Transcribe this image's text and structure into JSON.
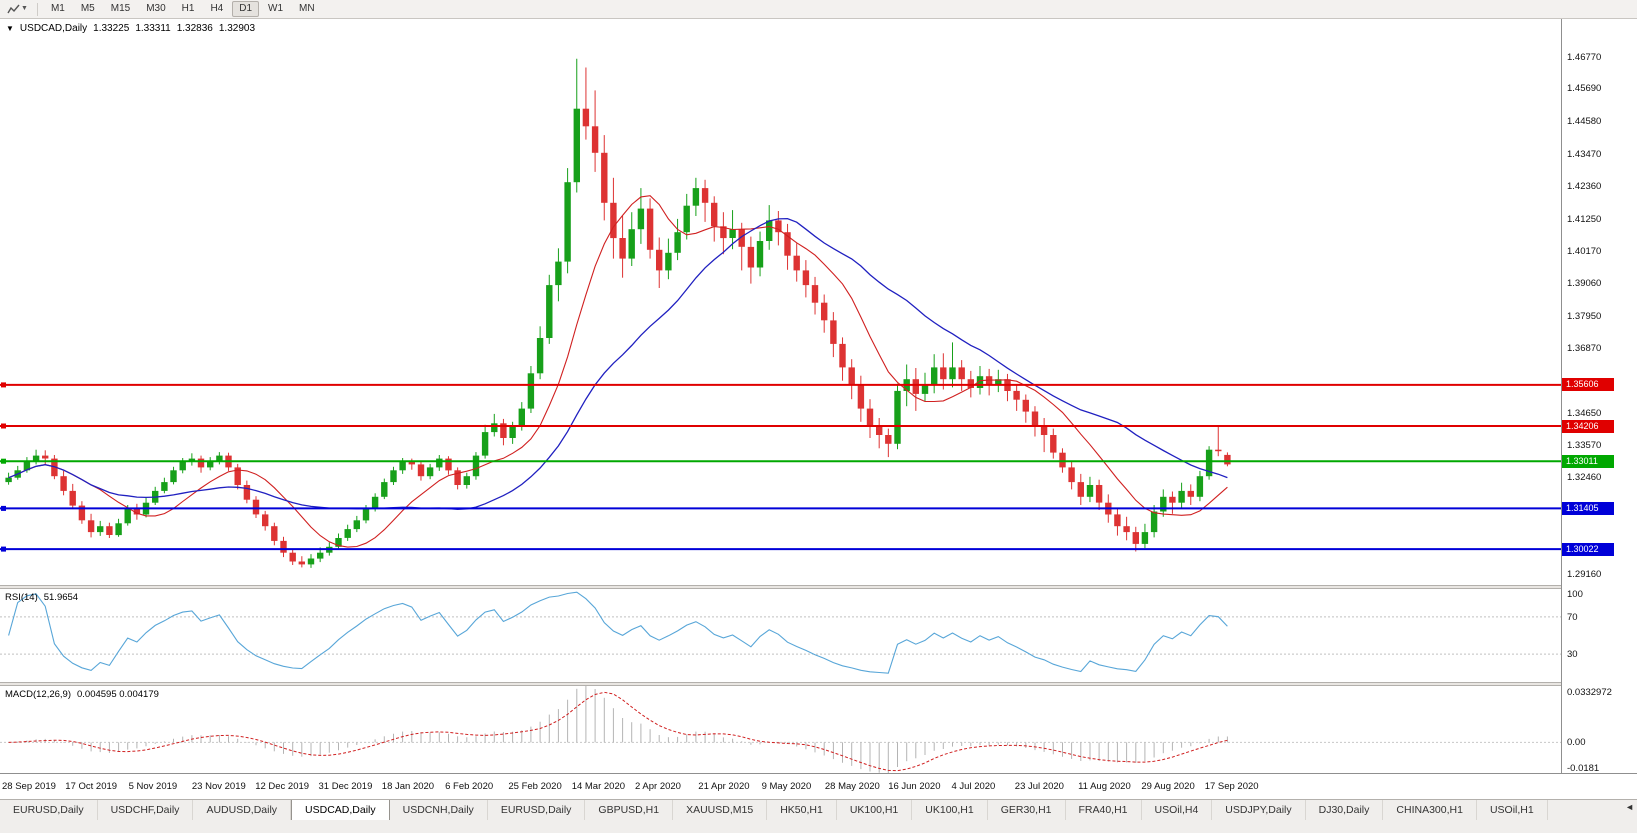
{
  "toolbar": {
    "timeframes": [
      "M1",
      "M5",
      "M15",
      "M30",
      "H1",
      "H4",
      "D1",
      "W1",
      "MN"
    ],
    "active_timeframe": "D1"
  },
  "chart_header": {
    "symbol_period": "USDCAD,Daily",
    "open": "1.33225",
    "high": "1.33311",
    "low": "1.32836",
    "close": "1.32903"
  },
  "chart_data": {
    "type": "candlestick",
    "title": "USDCAD,Daily",
    "up_color": "#17a01a",
    "down_color": "#dd3333",
    "ma_fast_color": "#d02020",
    "ma_slow_color": "#2020c0",
    "y_range": [
      1.288,
      1.4805
    ],
    "y_ticks": [
      "1.46770",
      "1.45690",
      "1.44580",
      "1.43470",
      "1.42360",
      "1.41250",
      "1.40170",
      "1.39060",
      "1.37950",
      "1.36870",
      "1.34650",
      "1.33570",
      "1.32460",
      "1.29160"
    ],
    "x_labels": [
      "28 Sep 2019",
      "17 Oct 2019",
      "5 Nov 2019",
      "23 Nov 2019",
      "12 Dec 2019",
      "31 Dec 2019",
      "18 Jan 2020",
      "6 Feb 2020",
      "25 Feb 2020",
      "14 Mar 2020",
      "2 Apr 2020",
      "21 Apr 2020",
      "9 May 2020",
      "28 May 2020",
      "16 Jun 2020",
      "4 Jul 2020",
      "23 Jul 2020",
      "11 Aug 2020",
      "29 Aug 2020",
      "17 Sep 2020"
    ],
    "hlines": [
      {
        "price": 1.35606,
        "label": "1.35606",
        "color": "#e00000",
        "width": 2
      },
      {
        "price": 1.34206,
        "label": "1.34206",
        "color": "#e00000",
        "width": 2
      },
      {
        "price": 1.33011,
        "label": "1.33011",
        "color": "#00a800",
        "width": 2
      },
      {
        "price": 1.31405,
        "label": "1.31405",
        "color": "#0000d8",
        "width": 2
      },
      {
        "price": 1.30022,
        "label": "1.30022",
        "color": "#0000d8",
        "width": 2
      }
    ],
    "indicators": [
      {
        "name": "RSI",
        "label": "RSI(14)",
        "values": "51.9654",
        "color": "#58a6d8",
        "levels": [
          "100",
          "70",
          "30"
        ],
        "level_values": [
          100,
          70,
          30
        ]
      },
      {
        "name": "MACD",
        "label": "MACD(12,26,9)",
        "values": "0.004595 0.004179",
        "histogram_color": "#b4b4b4",
        "signal_color": "#d02020",
        "axis_labels": [
          "0.0332972",
          "0.00",
          "-0.0181"
        ]
      }
    ],
    "candles": [
      [
        1.323,
        1.3262,
        1.3221,
        1.3245
      ],
      [
        1.3245,
        1.3285,
        1.3238,
        1.327
      ],
      [
        1.327,
        1.3315,
        1.3262,
        1.33
      ],
      [
        1.33,
        1.334,
        1.329,
        1.332
      ],
      [
        1.332,
        1.3338,
        1.3288,
        1.331
      ],
      [
        1.331,
        1.3322,
        1.324,
        1.325
      ],
      [
        1.325,
        1.3268,
        1.3185,
        1.32
      ],
      [
        1.32,
        1.3224,
        1.3138,
        1.315
      ],
      [
        1.315,
        1.3165,
        1.3088,
        1.31
      ],
      [
        1.31,
        1.3122,
        1.3042,
        1.306
      ],
      [
        1.306,
        1.3098,
        1.3047,
        1.308
      ],
      [
        1.308,
        1.3092,
        1.304,
        1.305
      ],
      [
        1.305,
        1.3105,
        1.3044,
        1.309
      ],
      [
        1.309,
        1.3152,
        1.3082,
        1.314
      ],
      [
        1.314,
        1.3156,
        1.3102,
        1.312
      ],
      [
        1.312,
        1.3176,
        1.311,
        1.316
      ],
      [
        1.316,
        1.3214,
        1.3152,
        1.32
      ],
      [
        1.32,
        1.3245,
        1.3192,
        1.323
      ],
      [
        1.323,
        1.3282,
        1.3222,
        1.327
      ],
      [
        1.327,
        1.3312,
        1.326,
        1.33
      ],
      [
        1.33,
        1.3328,
        1.3286,
        1.331
      ],
      [
        1.331,
        1.332,
        1.3262,
        1.328
      ],
      [
        1.328,
        1.3315,
        1.327,
        1.33
      ],
      [
        1.33,
        1.3332,
        1.329,
        1.332
      ],
      [
        1.332,
        1.333,
        1.3268,
        1.328
      ],
      [
        1.328,
        1.3292,
        1.3205,
        1.322
      ],
      [
        1.322,
        1.3235,
        1.3158,
        1.317
      ],
      [
        1.317,
        1.3182,
        1.3108,
        1.312
      ],
      [
        1.312,
        1.3132,
        1.3065,
        1.308
      ],
      [
        1.308,
        1.3092,
        1.3015,
        1.303
      ],
      [
        1.303,
        1.3044,
        1.2975,
        1.299
      ],
      [
        1.299,
        1.3002,
        1.2948,
        1.296
      ],
      [
        1.296,
        1.2978,
        1.294,
        1.295
      ],
      [
        1.295,
        1.2985,
        1.2938,
        1.297
      ],
      [
        1.297,
        1.3008,
        1.2958,
        1.299
      ],
      [
        1.299,
        1.3025,
        1.298,
        1.301
      ],
      [
        1.301,
        1.3055,
        1.3,
        1.304
      ],
      [
        1.304,
        1.3085,
        1.303,
        1.307
      ],
      [
        1.307,
        1.3115,
        1.306,
        1.31
      ],
      [
        1.31,
        1.3152,
        1.309,
        1.314
      ],
      [
        1.314,
        1.3192,
        1.313,
        1.318
      ],
      [
        1.318,
        1.3242,
        1.3172,
        1.323
      ],
      [
        1.323,
        1.3282,
        1.322,
        1.327
      ],
      [
        1.327,
        1.3312,
        1.3258,
        1.33
      ],
      [
        1.33,
        1.331,
        1.3272,
        1.329
      ],
      [
        1.329,
        1.3302,
        1.3235,
        1.325
      ],
      [
        1.325,
        1.3292,
        1.324,
        1.328
      ],
      [
        1.328,
        1.3322,
        1.3268,
        1.331
      ],
      [
        1.331,
        1.3318,
        1.3255,
        1.327
      ],
      [
        1.327,
        1.328,
        1.3205,
        1.322
      ],
      [
        1.322,
        1.3262,
        1.3208,
        1.325
      ],
      [
        1.325,
        1.3332,
        1.3238,
        1.332
      ],
      [
        1.332,
        1.3425,
        1.331,
        1.34
      ],
      [
        1.34,
        1.3462,
        1.3385,
        1.343
      ],
      [
        1.343,
        1.3445,
        1.3355,
        1.338
      ],
      [
        1.338,
        1.3435,
        1.336,
        1.342
      ],
      [
        1.342,
        1.3502,
        1.3405,
        1.348
      ],
      [
        1.348,
        1.3625,
        1.3465,
        1.36
      ],
      [
        1.36,
        1.376,
        1.358,
        1.372
      ],
      [
        1.372,
        1.3935,
        1.37,
        1.39
      ],
      [
        1.39,
        1.4025,
        1.3845,
        1.398
      ],
      [
        1.398,
        1.4298,
        1.394,
        1.425
      ],
      [
        1.425,
        1.467,
        1.4215,
        1.45
      ],
      [
        1.45,
        1.464,
        1.4395,
        1.444
      ],
      [
        1.444,
        1.4562,
        1.4285,
        1.435
      ],
      [
        1.435,
        1.441,
        1.412,
        1.418
      ],
      [
        1.418,
        1.4265,
        1.399,
        1.406
      ],
      [
        1.406,
        1.4135,
        1.3925,
        1.399
      ],
      [
        1.399,
        1.4148,
        1.3965,
        1.409
      ],
      [
        1.409,
        1.423,
        1.404,
        1.416
      ],
      [
        1.416,
        1.4195,
        1.399,
        1.402
      ],
      [
        1.402,
        1.4062,
        1.389,
        1.395
      ],
      [
        1.395,
        1.4058,
        1.392,
        1.401
      ],
      [
        1.401,
        1.4125,
        1.3985,
        1.408
      ],
      [
        1.408,
        1.421,
        1.4055,
        1.417
      ],
      [
        1.417,
        1.4265,
        1.4135,
        1.423
      ],
      [
        1.423,
        1.4258,
        1.4115,
        1.418
      ],
      [
        1.418,
        1.4202,
        1.4048,
        1.41
      ],
      [
        1.41,
        1.4148,
        1.4005,
        1.406
      ],
      [
        1.406,
        1.4155,
        1.4022,
        1.409
      ],
      [
        1.409,
        1.4112,
        1.395,
        1.403
      ],
      [
        1.403,
        1.4065,
        1.3905,
        1.396
      ],
      [
        1.396,
        1.4082,
        1.393,
        1.405
      ],
      [
        1.405,
        1.4172,
        1.402,
        1.412
      ],
      [
        1.412,
        1.4152,
        1.4035,
        1.408
      ],
      [
        1.408,
        1.4108,
        1.3952,
        1.4
      ],
      [
        1.4,
        1.4042,
        1.3912,
        1.395
      ],
      [
        1.395,
        1.3985,
        1.3858,
        1.39
      ],
      [
        1.39,
        1.3928,
        1.38,
        1.384
      ],
      [
        1.384,
        1.3868,
        1.3738,
        1.378
      ],
      [
        1.378,
        1.3808,
        1.3655,
        1.37
      ],
      [
        1.37,
        1.3722,
        1.3575,
        1.362
      ],
      [
        1.362,
        1.3648,
        1.3512,
        1.356
      ],
      [
        1.356,
        1.3592,
        1.3435,
        1.348
      ],
      [
        1.348,
        1.3512,
        1.338,
        1.342
      ],
      [
        1.342,
        1.3448,
        1.3345,
        1.339
      ],
      [
        1.339,
        1.3412,
        1.3315,
        1.336
      ],
      [
        1.336,
        1.3565,
        1.3342,
        1.354
      ],
      [
        1.354,
        1.363,
        1.3488,
        1.358
      ],
      [
        1.358,
        1.3618,
        1.3472,
        1.353
      ],
      [
        1.353,
        1.3602,
        1.3505,
        1.356
      ],
      [
        1.356,
        1.3665,
        1.3532,
        1.362
      ],
      [
        1.362,
        1.3668,
        1.3545,
        1.358
      ],
      [
        1.358,
        1.3705,
        1.3552,
        1.362
      ],
      [
        1.362,
        1.3645,
        1.354,
        1.358
      ],
      [
        1.358,
        1.3608,
        1.3518,
        1.355
      ],
      [
        1.355,
        1.3625,
        1.3528,
        1.359
      ],
      [
        1.359,
        1.3615,
        1.3525,
        1.356
      ],
      [
        1.356,
        1.3612,
        1.3536,
        1.358
      ],
      [
        1.358,
        1.3598,
        1.3505,
        1.354
      ],
      [
        1.354,
        1.3562,
        1.3472,
        1.351
      ],
      [
        1.351,
        1.3528,
        1.3432,
        1.347
      ],
      [
        1.347,
        1.3488,
        1.3385,
        1.342
      ],
      [
        1.342,
        1.3448,
        1.3332,
        1.339
      ],
      [
        1.339,
        1.3412,
        1.331,
        1.333
      ],
      [
        1.333,
        1.3345,
        1.3262,
        1.328
      ],
      [
        1.328,
        1.3302,
        1.3205,
        1.323
      ],
      [
        1.323,
        1.3258,
        1.3152,
        1.318
      ],
      [
        1.318,
        1.3248,
        1.3162,
        1.322
      ],
      [
        1.322,
        1.3238,
        1.3135,
        1.316
      ],
      [
        1.316,
        1.3188,
        1.3092,
        1.312
      ],
      [
        1.312,
        1.3142,
        1.3048,
        1.308
      ],
      [
        1.308,
        1.3112,
        1.3032,
        1.306
      ],
      [
        1.306,
        1.3078,
        1.2994,
        1.302
      ],
      [
        1.302,
        1.3088,
        1.3005,
        1.306
      ],
      [
        1.306,
        1.3152,
        1.3042,
        1.313
      ],
      [
        1.313,
        1.3205,
        1.3112,
        1.318
      ],
      [
        1.318,
        1.3198,
        1.3122,
        1.316
      ],
      [
        1.316,
        1.3228,
        1.3142,
        1.32
      ],
      [
        1.32,
        1.3222,
        1.3152,
        1.318
      ],
      [
        1.318,
        1.3268,
        1.3165,
        1.325
      ],
      [
        1.325,
        1.3352,
        1.3238,
        1.334
      ],
      [
        1.334,
        1.3421,
        1.3318,
        1.3335
      ],
      [
        1.33225,
        1.33311,
        1.32836,
        1.32903
      ]
    ]
  },
  "tabs": {
    "active_index": 3,
    "items": [
      "EURUSD,Daily",
      "USDCHF,Daily",
      "AUDUSD,Daily",
      "USDCAD,Daily",
      "USDCNH,Daily",
      "EURUSD,Daily",
      "GBPUSD,H1",
      "XAUUSD,M15",
      "HK50,H1",
      "UK100,H1",
      "UK100,H1",
      "GER30,H1",
      "FRA40,H1",
      "USOil,H4",
      "USDJPY,Daily",
      "DJ30,Daily",
      "CHINA300,H1",
      "USOil,H1"
    ],
    "scroll_arrow": "◄"
  }
}
